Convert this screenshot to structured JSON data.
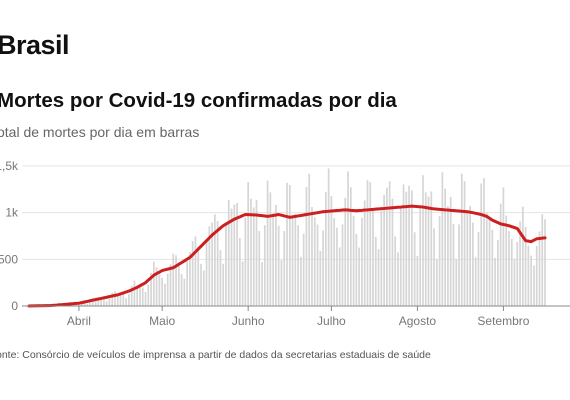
{
  "header": {
    "title": "Brasil",
    "subtitle": "Mortes por Covid-19 confirmadas por dia",
    "description": "otal de mortes por dia em barras"
  },
  "footer": {
    "source": "onte: Consórcio de veículos de imprensa a partir de dados da secretarias estaduais de saúde"
  },
  "colors": {
    "bars": "#d6d6d6",
    "line": "#cc1f1f",
    "grid": "#e4e4e4",
    "axis": "#888888"
  },
  "chart_data": {
    "type": "bar",
    "title": "Mortes por Covid-19 confirmadas por dia",
    "ylim": [
      0,
      1500
    ],
    "y_ticks": [
      {
        "value": 0,
        "label": "0"
      },
      {
        "value": 500,
        "label": "500"
      },
      {
        "value": 1000,
        "label": "1k"
      },
      {
        "value": 1500,
        "label": "1,5k"
      }
    ],
    "x_ticks": [
      {
        "day": 18,
        "label": "Abril"
      },
      {
        "day": 48,
        "label": "Maio"
      },
      {
        "day": 79,
        "label": "Junho"
      },
      {
        "day": 109,
        "label": "Julho"
      },
      {
        "day": 140,
        "label": "Agosto"
      },
      {
        "day": 171,
        "label": "Setembro"
      }
    ],
    "grid": true,
    "series": [
      {
        "kind": "bars",
        "values": []
      },
      {
        "kind": "line",
        "values": []
      }
    ]
  }
}
